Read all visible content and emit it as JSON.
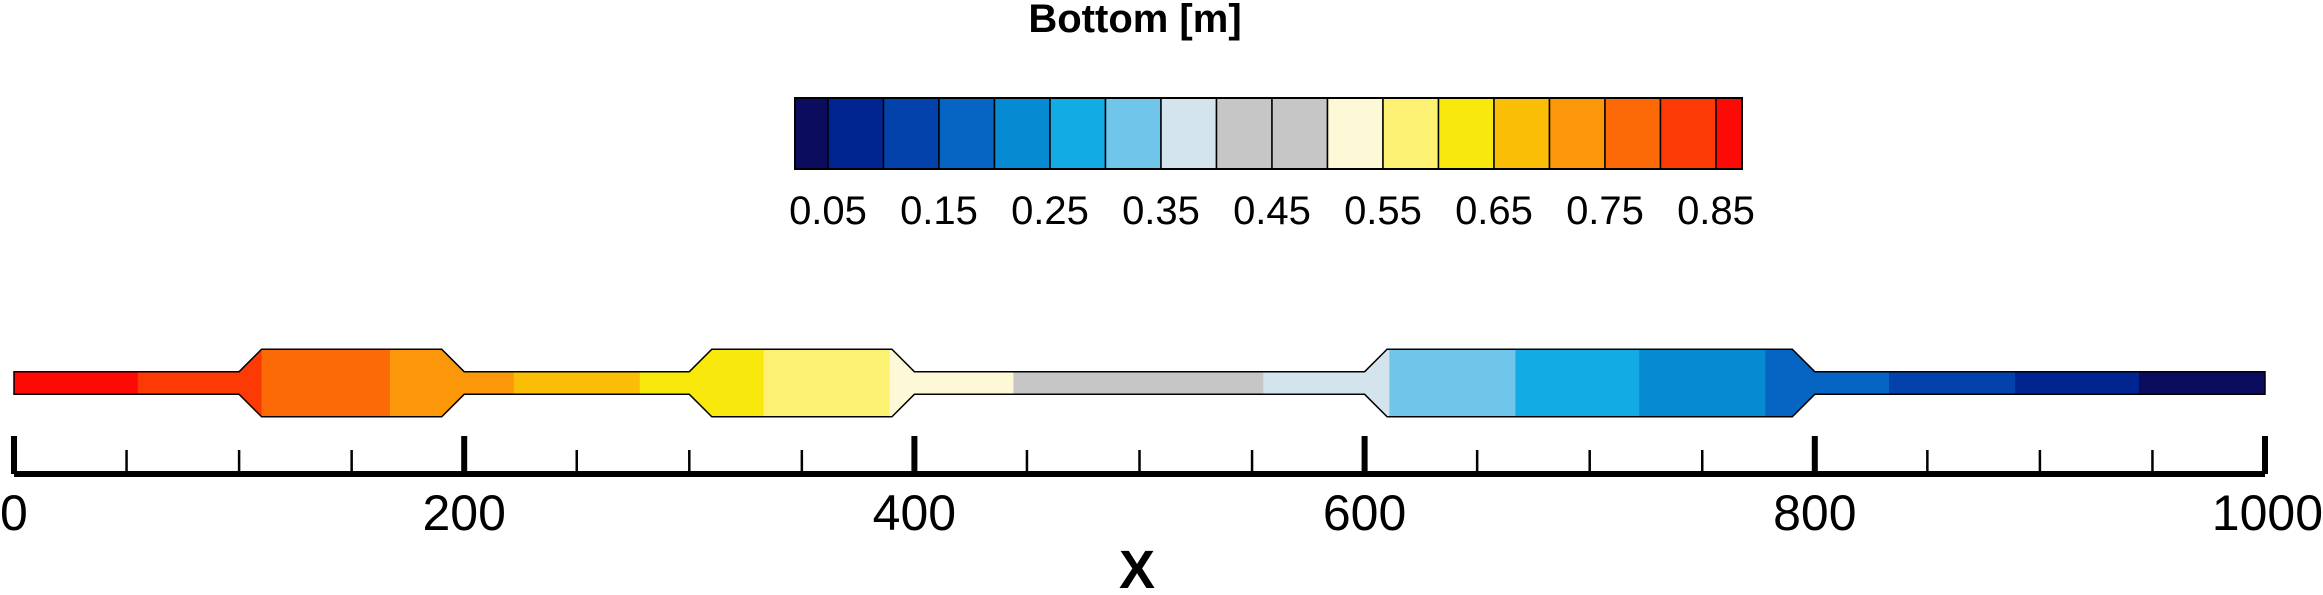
{
  "chart_data": {
    "type": "heatmap",
    "title": "",
    "legend": {
      "title": "Bottom [m]",
      "levels": [
        0.05,
        0.1,
        0.15,
        0.2,
        0.25,
        0.3,
        0.35,
        0.4,
        0.45,
        0.5,
        0.55,
        0.6,
        0.65,
        0.7,
        0.75,
        0.8,
        0.85
      ],
      "colors": [
        "#0c0c5e",
        "#012590",
        "#0342ab",
        "#0665c3",
        "#068bd3",
        "#13abe3",
        "#70c6ea",
        "#d3e4ed",
        "#c6c6c6",
        "#c6c6c6",
        "#fdf9d6",
        "#fcf172",
        "#f9e80b",
        "#fbbe06",
        "#fb9708",
        "#fc6907",
        "#fc3a05",
        "#fc0a05"
      ],
      "tick_labels": [
        "0.05",
        "0.15",
        "0.25",
        "0.35",
        "0.45",
        "0.55",
        "0.65",
        "0.75",
        "0.85"
      ]
    },
    "x_axis": {
      "label": "X",
      "range": [
        0,
        1000
      ],
      "major_ticks": [
        0,
        200,
        400,
        600,
        800,
        1000
      ],
      "tick_labels": [
        "0",
        "200",
        "400",
        "600",
        "800",
        "1000"
      ],
      "minor_step": 50
    },
    "channel_geometry": {
      "narrow_width": 10,
      "wide_width": 30,
      "wide_sections": [
        [
          100,
          200
        ],
        [
          300,
          400
        ],
        [
          600,
          800
        ]
      ],
      "transition_length": 10
    },
    "bottom_segments": [
      {
        "x": [
          0,
          55
        ],
        "value": 0.875
      },
      {
        "x": [
          55,
          110
        ],
        "value": 0.825
      },
      {
        "x": [
          110,
          167
        ],
        "value": 0.775
      },
      {
        "x": [
          167,
          222
        ],
        "value": 0.725
      },
      {
        "x": [
          222,
          278
        ],
        "value": 0.675
      },
      {
        "x": [
          278,
          333
        ],
        "value": 0.625
      },
      {
        "x": [
          333,
          389
        ],
        "value": 0.575
      },
      {
        "x": [
          389,
          444
        ],
        "value": 0.525
      },
      {
        "x": [
          444,
          555
        ],
        "value": 0.45
      },
      {
        "x": [
          555,
          611
        ],
        "value": 0.375
      },
      {
        "x": [
          611,
          667
        ],
        "value": 0.325
      },
      {
        "x": [
          667,
          722
        ],
        "value": 0.275
      },
      {
        "x": [
          722,
          778
        ],
        "value": 0.225
      },
      {
        "x": [
          778,
          833
        ],
        "value": 0.175
      },
      {
        "x": [
          833,
          889
        ],
        "value": 0.125
      },
      {
        "x": [
          889,
          944
        ],
        "value": 0.075
      },
      {
        "x": [
          944,
          1000
        ],
        "value": 0.025
      }
    ]
  }
}
